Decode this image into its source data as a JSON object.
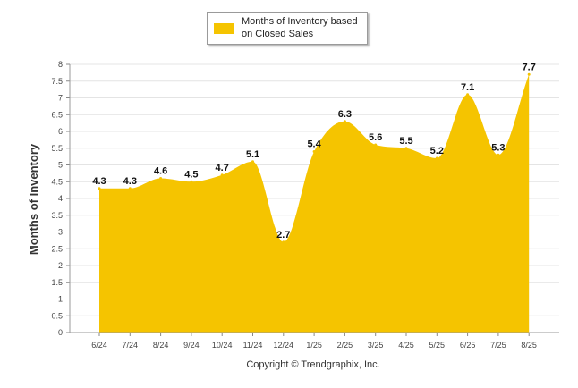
{
  "legend": {
    "label": "Months of Inventory based on Closed Sales"
  },
  "footer": {
    "copyright": "Copyright © Trendgraphix, Inc."
  },
  "chart_data": {
    "type": "area",
    "ylabel": "Months of Inventory",
    "ylim": [
      0,
      8
    ],
    "yticks": [
      "0",
      "0.5",
      "1",
      "1.5",
      "2",
      "2.5",
      "3",
      "3.5",
      "4",
      "4.5",
      "5",
      "5.5",
      "6",
      "6.5",
      "7",
      "7.5",
      "8"
    ],
    "grid": true,
    "legend_position": "top-center",
    "categories": [
      "6/24",
      "7/24",
      "8/24",
      "9/24",
      "10/24",
      "11/24",
      "12/24",
      "1/25",
      "2/25",
      "3/25",
      "4/25",
      "5/25",
      "6/25",
      "7/25",
      "8/25"
    ],
    "series": [
      {
        "name": "Months of Inventory based on Closed Sales",
        "color": "#f5c400",
        "values": [
          4.3,
          4.3,
          4.6,
          4.5,
          4.7,
          5.1,
          2.7,
          5.4,
          6.3,
          5.6,
          5.5,
          5.2,
          7.1,
          5.3,
          7.7
        ]
      }
    ]
  }
}
